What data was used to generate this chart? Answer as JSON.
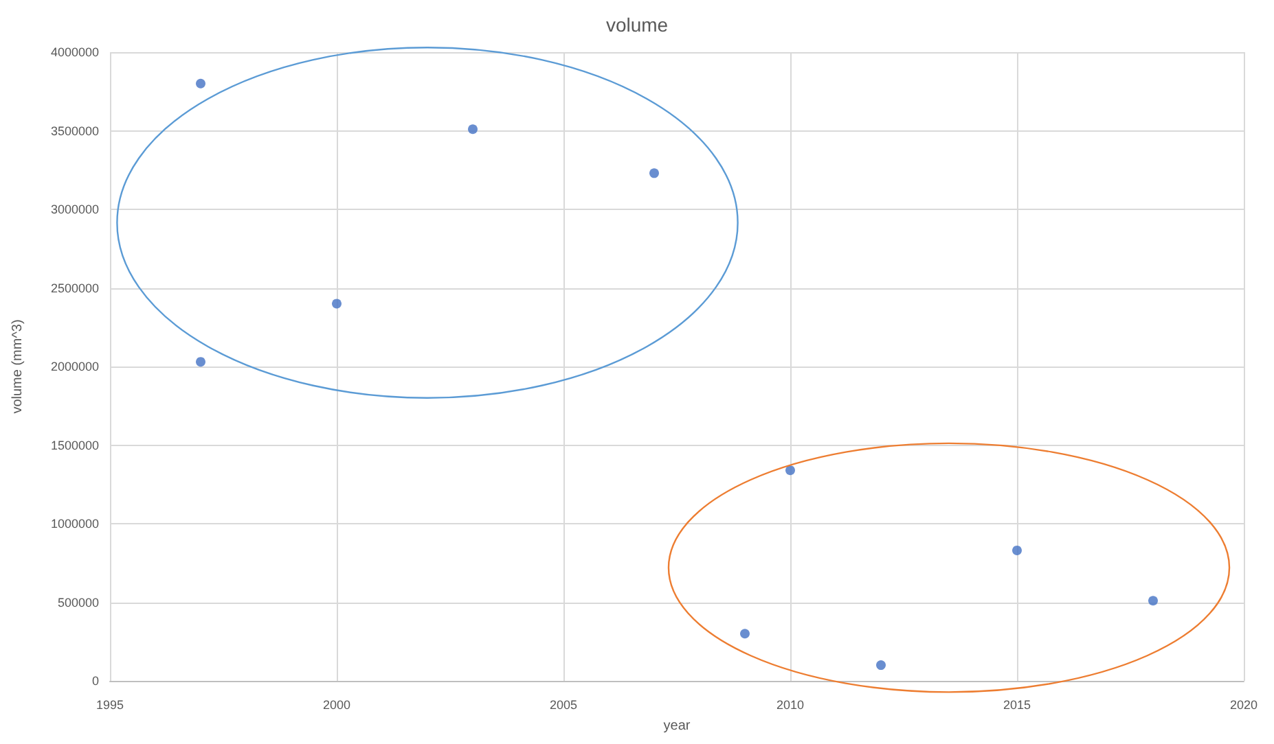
{
  "chart_data": {
    "type": "scatter",
    "title": "volume",
    "xlabel": "year",
    "ylabel": "volume (mm^3)",
    "series": [
      {
        "color": "#4472c4",
        "x": [
          1997,
          1997,
          2000,
          2003,
          2007
        ],
        "values": [
          3800000,
          2030000,
          2400000,
          3510000,
          3230000
        ]
      },
      {
        "color": "#4472c4",
        "x": [
          2009,
          2010,
          2012,
          2015,
          2018
        ],
        "values": [
          300000,
          1340000,
          100000,
          830000,
          510000
        ]
      }
    ],
    "xlim": [
      1995,
      2020
    ],
    "xticks": [
      1995,
      2000,
      2005,
      2010,
      2015,
      2020
    ],
    "ylim": [
      0,
      4000000
    ],
    "yticks": [
      0,
      500000,
      1000000,
      1500000,
      2000000,
      2500000,
      3000000,
      3500000,
      4000000
    ],
    "grid": true,
    "marker": "circle"
  }
}
